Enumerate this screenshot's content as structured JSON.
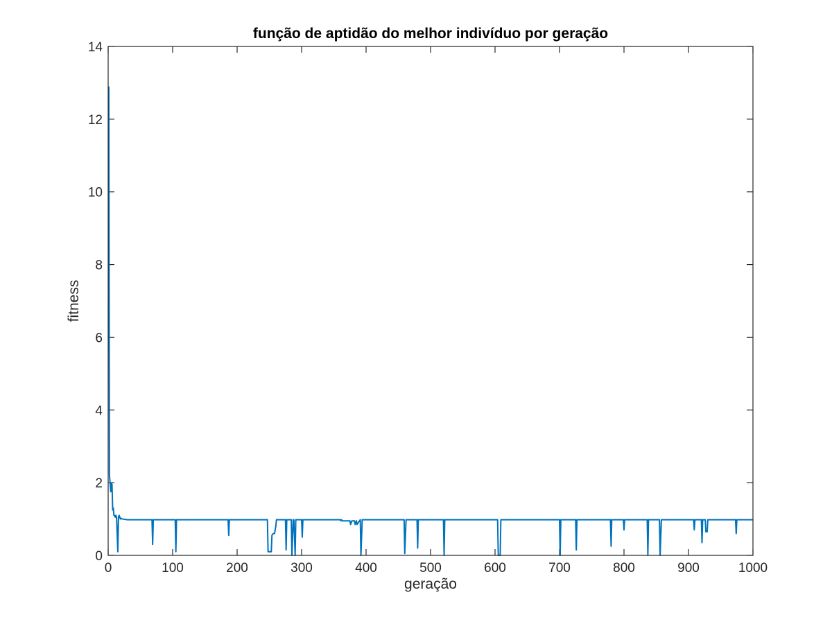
{
  "chart_data": {
    "type": "line",
    "title": "função de aptidão do melhor indivíduo por geração",
    "xlabel": "geração",
    "ylabel": "fitness",
    "xlim": [
      0,
      1000
    ],
    "ylim": [
      0,
      14
    ],
    "xticks": [
      0,
      100,
      200,
      300,
      400,
      500,
      600,
      700,
      800,
      900,
      1000
    ],
    "yticks": [
      0,
      2,
      4,
      6,
      8,
      10,
      12,
      14
    ],
    "grid": false,
    "line_color": "#0072BD",
    "series": [
      {
        "x": [
          1,
          2,
          3,
          4,
          5,
          6,
          7,
          8,
          9,
          10,
          11,
          12,
          13,
          15,
          16,
          17,
          18,
          19,
          20,
          22,
          30,
          68,
          69,
          70,
          71,
          104,
          105,
          106,
          107,
          186,
          187,
          188,
          189,
          247,
          248,
          253,
          254,
          256,
          258,
          260,
          261,
          262,
          263,
          275,
          276,
          277,
          278,
          284,
          285,
          287,
          288,
          290,
          291,
          293,
          294,
          300,
          301,
          302,
          303,
          360,
          361,
          362,
          363,
          375,
          376,
          378,
          382,
          383,
          385,
          386,
          391,
          392,
          394,
          395,
          459,
          460,
          462,
          463,
          479,
          480,
          481,
          482,
          520,
          521,
          522,
          523,
          604,
          605,
          608,
          609,
          700,
          701,
          702,
          703,
          725,
          726,
          727,
          728,
          779,
          780,
          781,
          782,
          799,
          800,
          801,
          802,
          836,
          837,
          838,
          839,
          855,
          856,
          858,
          859,
          908,
          909,
          910,
          911,
          920,
          921,
          922,
          923,
          926,
          927,
          929,
          930,
          973,
          974,
          975,
          976,
          1000
        ],
        "y": [
          12.9,
          2.2,
          2.0,
          1.75,
          2.0,
          1.95,
          1.25,
          1.3,
          1.1,
          1.1,
          1.05,
          1.1,
          1.05,
          0.1,
          1.05,
          1.1,
          1.05,
          1.0,
          1.02,
          1.0,
          0.98,
          0.98,
          0.3,
          0.98,
          0.98,
          0.98,
          0.1,
          0.98,
          0.98,
          0.98,
          0.55,
          0.98,
          0.98,
          0.98,
          0.1,
          0.1,
          0.55,
          0.6,
          0.6,
          0.8,
          0.98,
          0.98,
          0.98,
          0.98,
          0.15,
          0.98,
          0.98,
          0.98,
          0.0,
          0.98,
          0.98,
          0.0,
          0.98,
          0.98,
          0.98,
          0.98,
          0.5,
          0.98,
          0.98,
          0.98,
          0.95,
          0.98,
          0.95,
          0.95,
          0.85,
          0.95,
          0.95,
          0.85,
          0.95,
          0.85,
          0.98,
          0.0,
          0.98,
          0.98,
          0.98,
          0.05,
          0.98,
          0.98,
          0.98,
          0.2,
          0.98,
          0.98,
          0.98,
          0.0,
          0.98,
          0.98,
          0.98,
          0.0,
          0.0,
          0.98,
          0.98,
          0.0,
          0.98,
          0.98,
          0.98,
          0.15,
          0.98,
          0.98,
          0.98,
          0.25,
          0.98,
          0.98,
          0.98,
          0.7,
          0.98,
          0.98,
          0.98,
          0.0,
          0.98,
          0.98,
          0.98,
          0.0,
          0.98,
          0.98,
          0.98,
          0.7,
          0.98,
          0.98,
          0.98,
          0.35,
          0.98,
          0.98,
          0.98,
          0.65,
          0.65,
          0.98,
          0.98,
          0.6,
          0.98,
          0.98,
          0.98
        ]
      }
    ]
  }
}
